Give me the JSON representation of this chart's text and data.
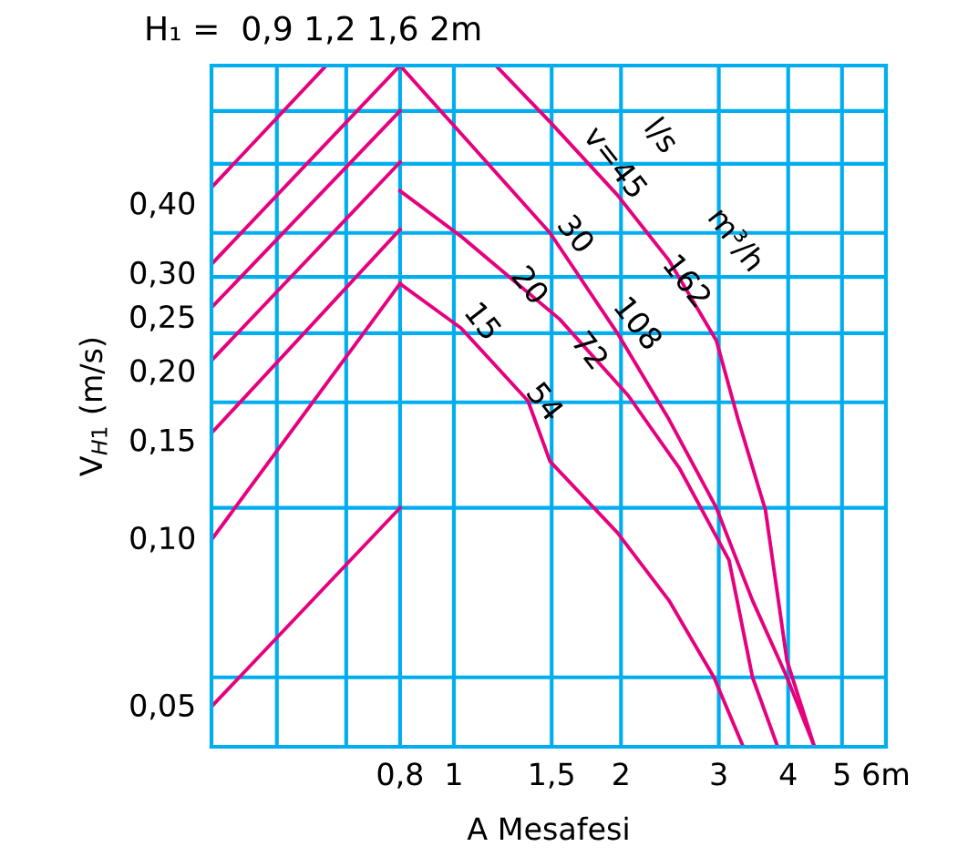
{
  "chart_data": {
    "type": "line",
    "title": "H₁ =  0,9 1,2 1,6 2m",
    "xlabel": "A Mesafesi",
    "ylabel": "V$_{H1}$ (m/s)",
    "log": "xy",
    "grid": true,
    "marker": "none",
    "line_style": "solid",
    "xlim": [
      0.366,
      6
    ],
    "ylim": [
      0.042,
      0.706
    ],
    "xticks": [
      {
        "value": 0.48,
        "label": null
      },
      {
        "value": 0.64,
        "label": null
      },
      {
        "value": 0.8,
        "label": "0,8"
      },
      1,
      {
        "value": 1.5,
        "label": "1,5"
      },
      2,
      3,
      4,
      5,
      {
        "value": 6,
        "label": "6m"
      }
    ],
    "yticks": [
      {
        "value": 0.05,
        "label": "0,05"
      },
      {
        "value": 0.1,
        "label": "0,10"
      },
      {
        "value": 0.15,
        "label": "0,15"
      },
      {
        "value": 0.2,
        "label": "0,20"
      },
      {
        "value": 0.25,
        "label": "0,25"
      },
      {
        "value": 0.3,
        "label": "0,30"
      },
      {
        "value": 0.4,
        "label": "0,40"
      },
      {
        "value": 0.056,
        "label": null
      },
      {
        "value": 0.113,
        "label": null
      },
      {
        "value": 0.175,
        "label": null
      },
      {
        "value": 0.233,
        "label": null
      },
      {
        "value": 0.294,
        "label": null
      },
      {
        "value": 0.353,
        "label": null
      },
      {
        "value": 0.47,
        "label": null
      },
      {
        "value": 0.585,
        "label": null
      }
    ],
    "series": [
      {
        "color": "#e6007e",
        "x": [
          0.366,
          0.589
        ],
        "values": [
          0.426,
          0.706
        ]
      },
      {
        "color": "#e6007e",
        "x": [
          0.366,
          0.8
        ],
        "values": [
          0.31,
          0.706
        ]
      },
      {
        "color": "#e6007e",
        "x": [
          0.366,
          0.8
        ],
        "values": [
          0.259,
          0.585
        ]
      },
      {
        "color": "#e6007e",
        "x": [
          0.366,
          0.8
        ],
        "values": [
          0.208,
          0.473
        ]
      },
      {
        "color": "#e6007e",
        "x": [
          0.366,
          0.8
        ],
        "values": [
          0.154,
          0.358
        ]
      },
      {
        "color": "#e6007e",
        "x": [
          0.366,
          0.8
        ],
        "values": [
          0.099,
          0.286
        ]
      },
      {
        "color": "#e6007e",
        "x": [
          0.366,
          0.8
        ],
        "values": [
          0.0496,
          0.113
        ]
      },
      {
        "color": "#e6007e",
        "x": [
          0.8,
          1.03,
          1.36,
          1.49,
          1.97,
          2.44,
          2.94,
          3.32
        ],
        "values": [
          0.286,
          0.238,
          0.176,
          0.137,
          0.102,
          0.077,
          0.056,
          0.042
        ]
      },
      {
        "color": "#e6007e",
        "x": [
          0.8,
          1.03,
          1.55,
          2.06,
          2.55,
          3.13,
          3.45,
          3.83
        ],
        "values": [
          0.42,
          0.348,
          0.247,
          0.18,
          0.133,
          0.091,
          0.056,
          0.042
        ]
      },
      {
        "color": "#e6007e",
        "x": [
          0.8,
          1.49,
          1.97,
          2.44,
          2.97,
          3.45,
          3.98,
          4.46
        ],
        "values": [
          0.706,
          0.353,
          0.233,
          0.163,
          0.113,
          0.077,
          0.056,
          0.042
        ]
      },
      {
        "color": "#e6007e",
        "x": [
          1.19,
          1.49,
          1.97,
          2.44,
          2.97,
          3.25,
          3.64,
          3.98,
          4.46
        ],
        "values": [
          0.706,
          0.559,
          0.413,
          0.315,
          0.226,
          0.163,
          0.112,
          0.06,
          0.042
        ]
      }
    ],
    "annotations": [
      "v=45",
      "l/s",
      "30",
      "m³/h",
      "162",
      "20",
      "108",
      "15",
      "72",
      "54"
    ]
  }
}
